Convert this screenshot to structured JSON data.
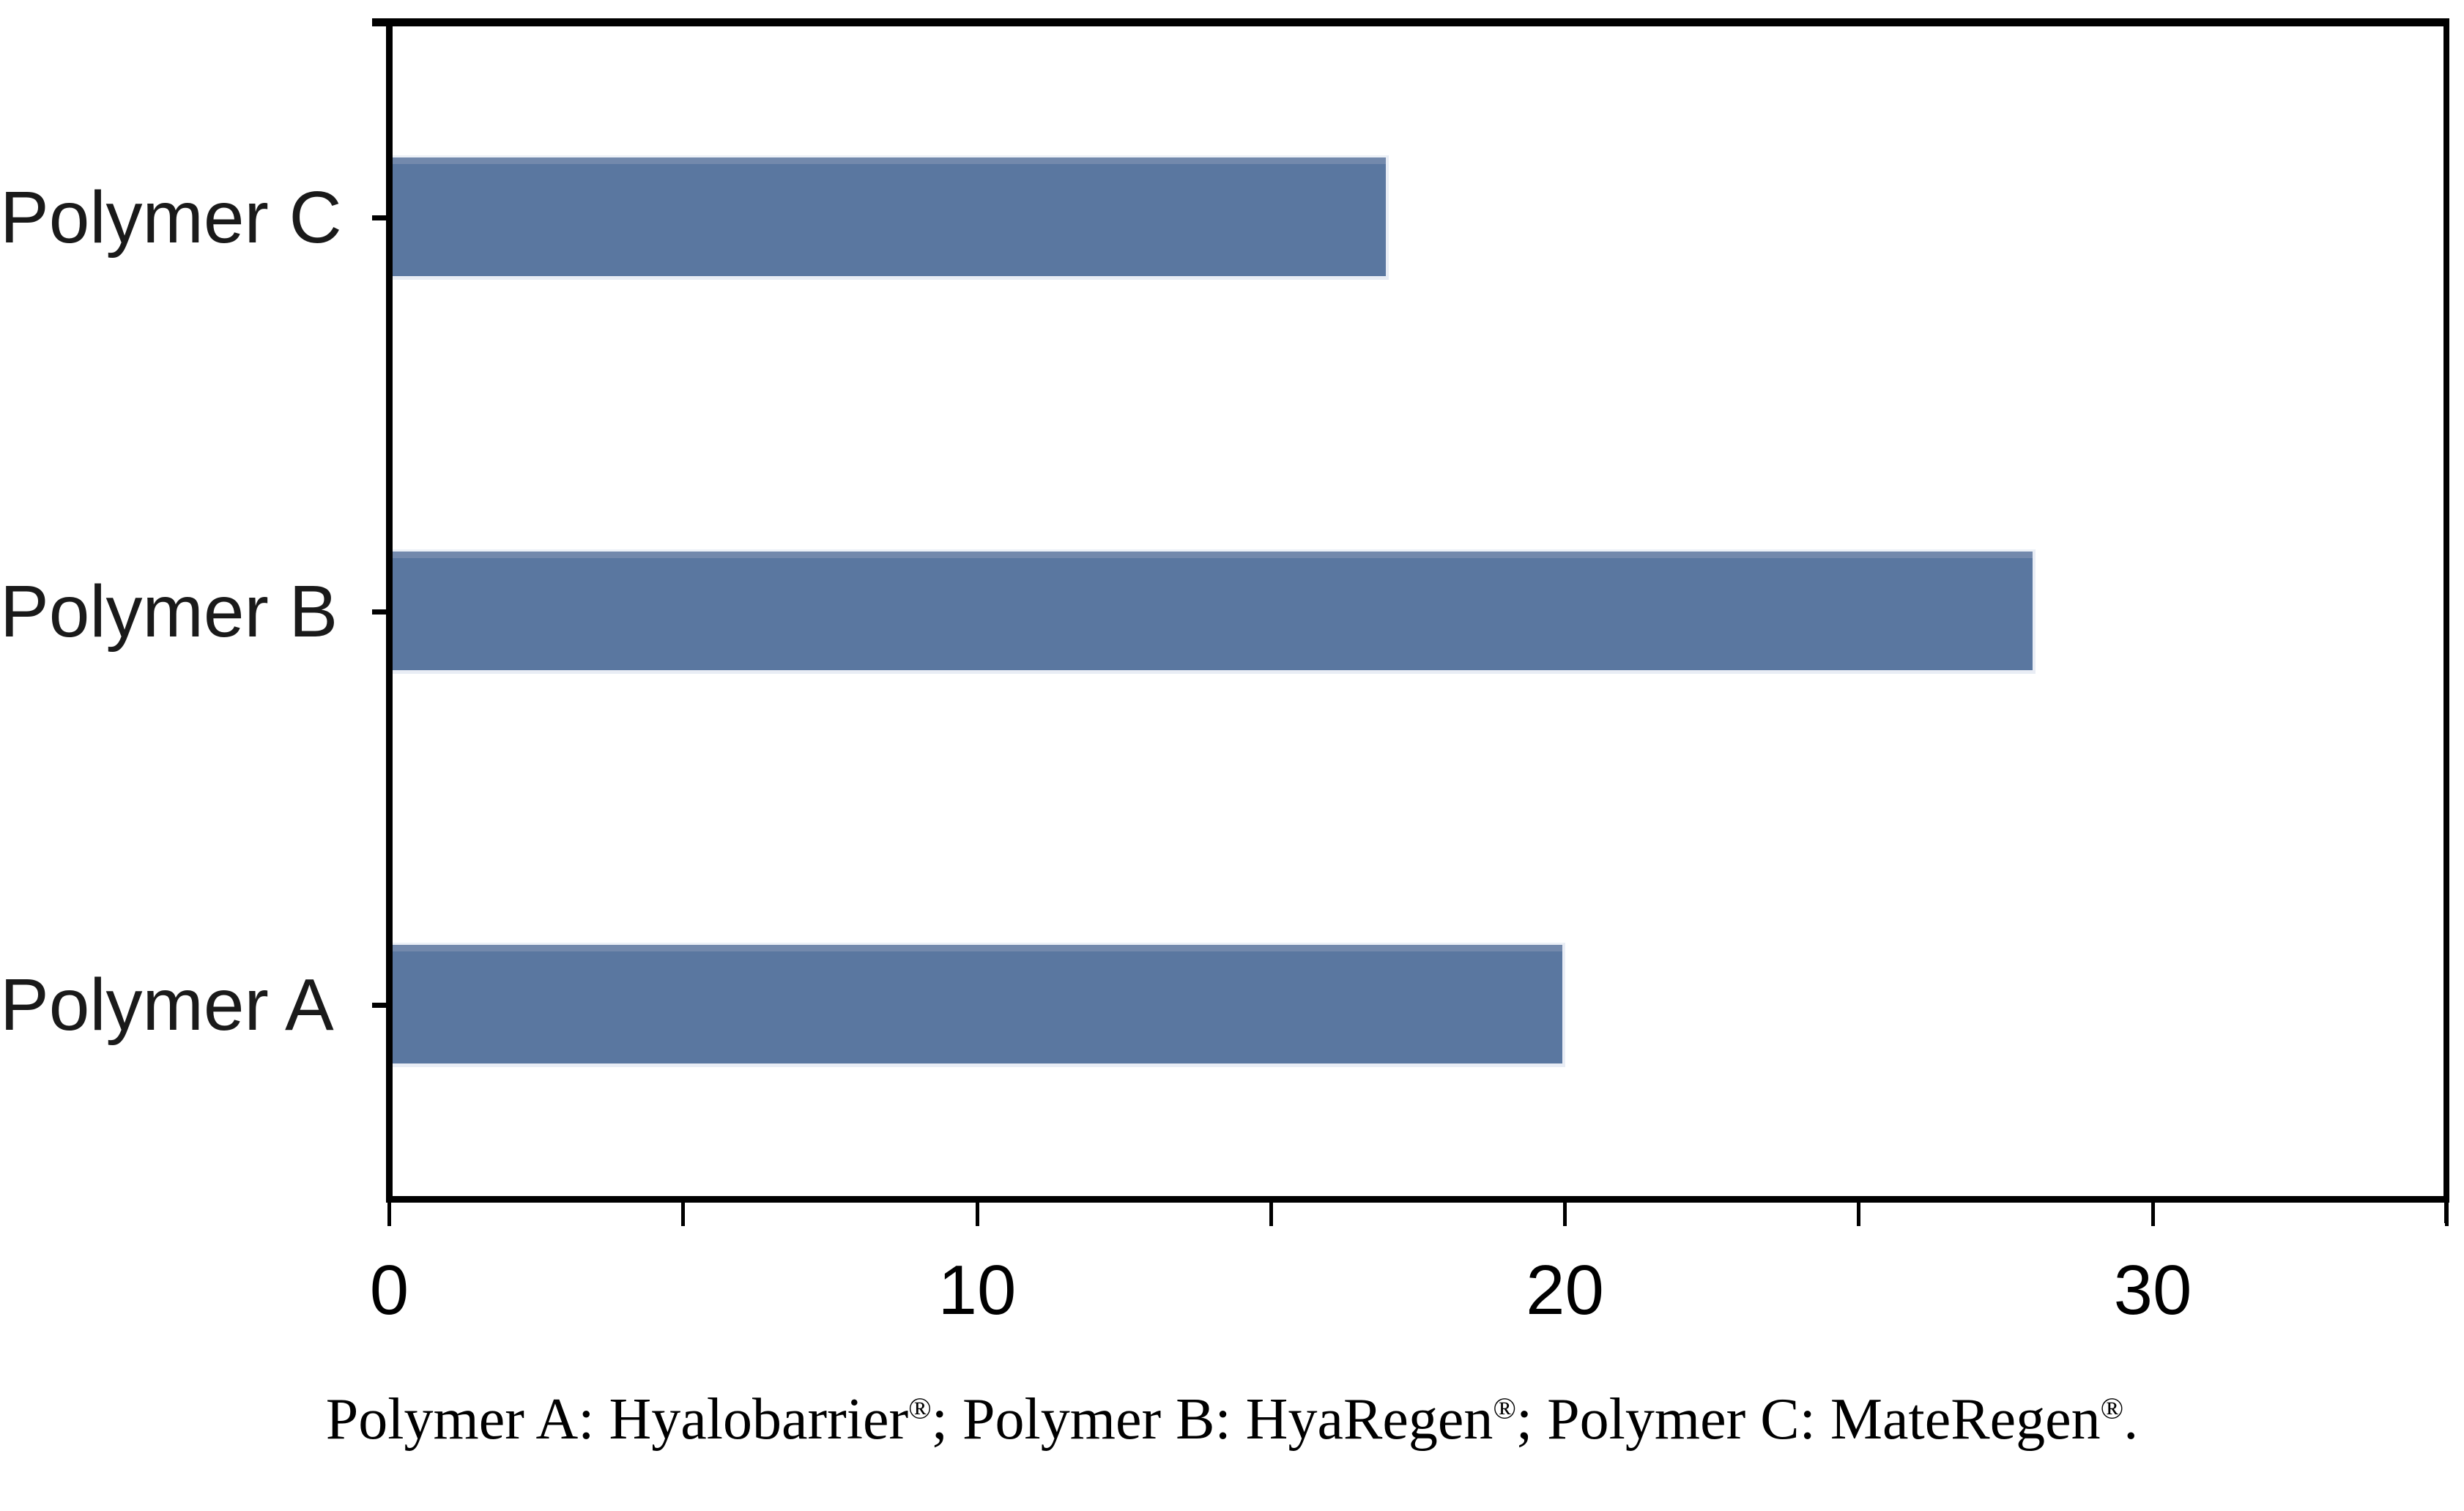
{
  "chart_data": {
    "type": "bar",
    "orientation": "horizontal",
    "title": "",
    "xlabel": "",
    "ylabel": "",
    "categories": [
      "Polymer C",
      "Polymer B",
      "Polymer A"
    ],
    "values": [
      17,
      28,
      20
    ],
    "xlim": [
      0,
      35
    ],
    "x_major_ticks": [
      0,
      10,
      20,
      30
    ],
    "x_minor_ticks": [
      5,
      15,
      25,
      35
    ],
    "grid": "off",
    "legend": "none",
    "bar_color": "#5A77A0",
    "bar_top_highlight_color": "#7389AC",
    "bar_rim_color": "#E9EDF5",
    "axis_color": "#000000"
  },
  "caption": {
    "full_text": "Polymer A: Hyalobarrier®; Polymer B: HyaRegen®; Polymer C: MateRegen®.",
    "parts": [
      {
        "text": "Polymer A: Hyalobarrier"
      },
      {
        "sup": "®"
      },
      {
        "text": "; Polymer B: HyaRegen"
      },
      {
        "sup": "®"
      },
      {
        "text": "; Polymer C: MateRegen"
      },
      {
        "sup": "®"
      },
      {
        "text": "."
      }
    ]
  }
}
